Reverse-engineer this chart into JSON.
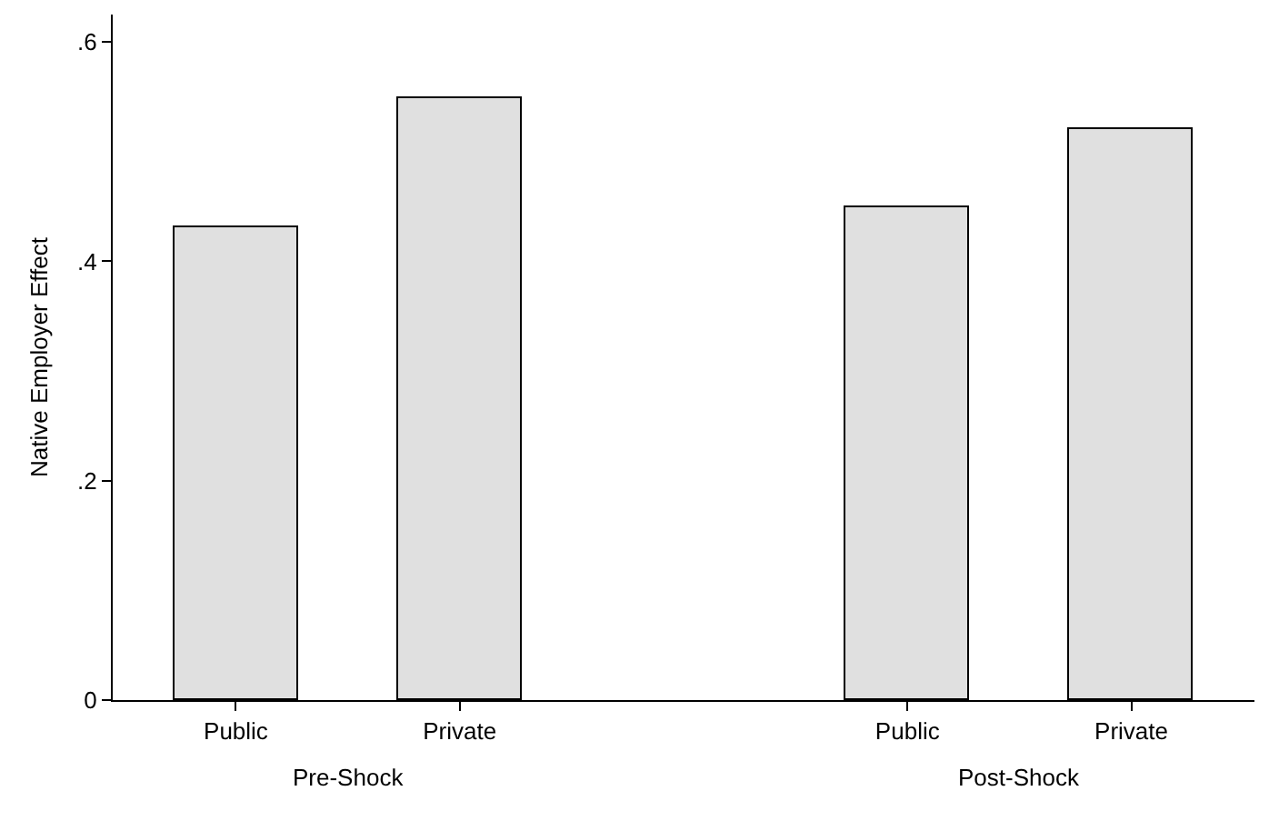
{
  "chart_data": {
    "type": "bar",
    "ylabel": "Native Employer Effect",
    "categories": [
      "Public",
      "Private",
      null,
      "Public",
      "Private"
    ],
    "values": [
      0.431,
      0.549,
      null,
      0.45,
      0.52
    ],
    "color": "#e0e0e0",
    "ylim": [
      0,
      0.625
    ],
    "yticks": [
      0,
      {
        "value": 0.2,
        "label": ".2"
      },
      {
        "value": 0.4,
        "label": ".4"
      },
      {
        "value": 0.6,
        "label": ".6"
      }
    ],
    "annotations": [
      "Pre-Shock",
      "Post-Shock"
    ],
    "grid": false
  }
}
